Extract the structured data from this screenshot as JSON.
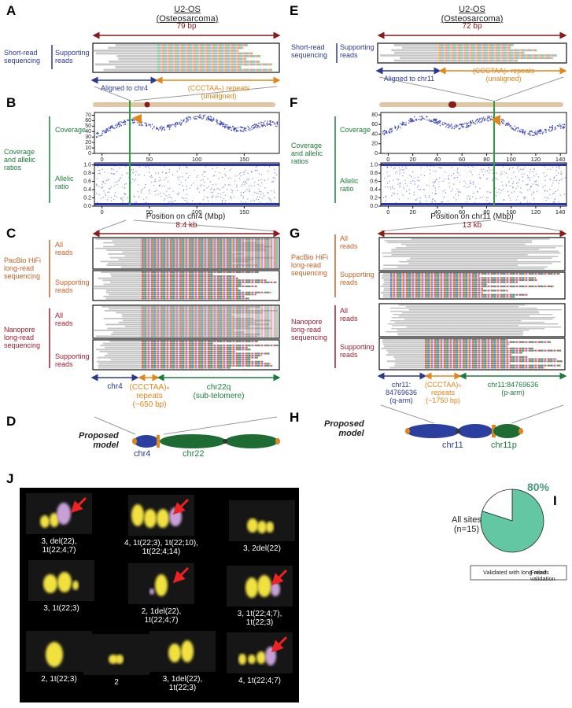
{
  "A": {
    "letter": "A",
    "title": "U2-OS\n(Osteosarcoma)",
    "span": "79 bp",
    "method": "Short-read\nsequencing",
    "reads": "Supporting\nreads",
    "left": "Aligned to chr4",
    "right": "(CCCTAAₙ) repeats\n(unaligned)"
  },
  "B": {
    "letter": "B",
    "group": "Coverage\nand allelic\nratios",
    "coverage": {
      "label": "Coverage",
      "ylim": [
        0,
        75
      ],
      "yticks": [
        0,
        10,
        20,
        30,
        40,
        50,
        60,
        70
      ],
      "xlim": [
        -8,
        187
      ],
      "xticks": [
        0,
        50,
        100,
        150
      ]
    },
    "allelic": {
      "label": "Allelic\nratio",
      "ylim": [
        0,
        1.05
      ],
      "yticks": [
        {
          "value": 0,
          "label": "0.0"
        },
        {
          "value": 0.2,
          "label": "0.2"
        },
        {
          "value": 0.4,
          "label": "0.4"
        },
        {
          "value": 0.6,
          "label": "0.6"
        },
        {
          "value": 0.8,
          "label": "0.8"
        },
        {
          "value": 1,
          "label": "1.0"
        }
      ],
      "xlim": [
        -8,
        187
      ],
      "xticks": [
        0,
        50,
        100,
        150
      ]
    },
    "xlabel": "Position on chr4 (Mbp)"
  },
  "C": {
    "letter": "C",
    "span": "8.4 kb",
    "pacbio": "PacBio HiFi\nlong-read\nsequencing",
    "nanopore": "Nanopore\nlong-read\nsequencing",
    "all": "All\nreads",
    "supporting": "Supporting\nreads",
    "seg1": "chr4",
    "seg2": "(CCCTAA)ₙ\nrepeats\n(~650 bp)",
    "seg3": "chr22q\n(sub-telomere)"
  },
  "D": {
    "letter": "D",
    "model": "Proposed\nmodel",
    "left": "chr4",
    "right": "chr22"
  },
  "E": {
    "letter": "E",
    "title": "U2-OS\n(Osteosarcoma)",
    "span": "72 bp",
    "method": "Short-read\nsequencing",
    "reads": "Supporting\nreads",
    "left": "Aligned to chr11",
    "right": "(CCCTAA)ₙ repeats\n(unaligned)"
  },
  "F": {
    "letter": "F",
    "group": "Coverage\nand allelic\nratios",
    "coverage": {
      "label": "Coverage",
      "ylim": [
        0,
        85
      ],
      "yticks": [
        0,
        20,
        40,
        60,
        80
      ],
      "xlim": [
        -6,
        145
      ],
      "xticks": [
        0,
        20,
        40,
        60,
        80,
        100,
        120,
        140
      ]
    },
    "allelic": {
      "label": "Allelic\nratio",
      "ylim": [
        0,
        1.05
      ],
      "yticks": [
        {
          "value": 0,
          "label": "0.0"
        },
        {
          "value": 0.2,
          "label": "0.2"
        },
        {
          "value": 0.4,
          "label": "0.4"
        },
        {
          "value": 0.6,
          "label": "0.6"
        },
        {
          "value": 0.8,
          "label": "0.8"
        },
        {
          "value": 1,
          "label": "1.0"
        }
      ],
      "xlim": [
        -6,
        145
      ],
      "xticks": [
        0,
        20,
        40,
        60,
        80,
        100,
        120,
        140
      ]
    },
    "xlabel": "Position on chr11 (Mbp)"
  },
  "G": {
    "letter": "G",
    "span": "13 kb",
    "pacbio": "PacBio HiFi\nlong-read\nsequencing",
    "nanopore": "Nanopore\nlong-read\nsequencing",
    "all": "All\nreads",
    "supporting": "Supporting\nreads",
    "seg1": "chr11:\n84769636\n(q-arm)",
    "seg2": "(CCCTAA)ₙ\nrepeats\n(~1750 bp)",
    "seg3": "chr11:84769636\n(p-arm)"
  },
  "H": {
    "letter": "H",
    "model": "Proposed\nmodel",
    "left": "chr11",
    "right": "chr11p"
  },
  "I": {
    "letter": "I",
    "group": "All sites\n(n=15)",
    "slices": [
      {
        "name": "Validated with long-reads",
        "value": 80,
        "label": "80%",
        "color": "#63c7a3"
      },
      {
        "name": "Failed validation",
        "value": 20,
        "color": "#ffffff"
      }
    ]
  },
  "J": {
    "letter": "J",
    "cells": [
      "3, del(22),\n1t(22;4;7)",
      "4, 1t(22;3), 1t(22;10),\n1t(22;4;14)",
      "3, 2del(22)",
      "3, 1t(22;3)",
      "2, 1del(22),\n1t(22;4;7)",
      "3, 1t(22;4;7),\n1t(22;3)",
      "2, 1t(22;3)",
      "2",
      "3, 1del(22),\n1t(22;3)",
      "4, 1t(22;4;7)"
    ]
  }
}
